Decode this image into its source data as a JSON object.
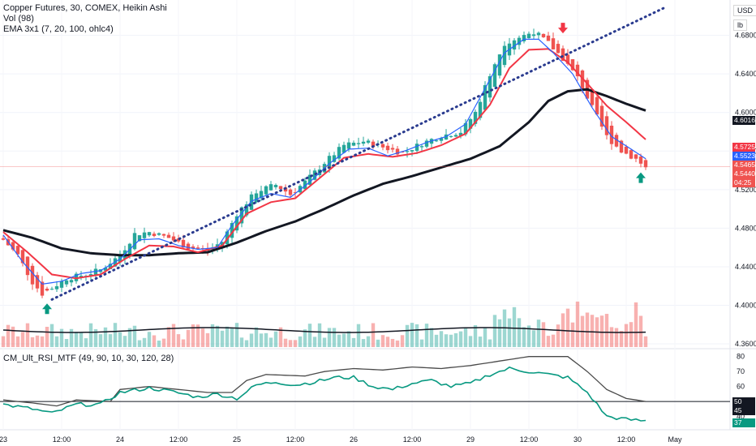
{
  "header": {
    "title": "Copper Futures, 30, COMEX, Heikin Ashi",
    "vol_label": "Vol (98)",
    "ema_label": "EMA 3x1 (7, 20, 100, ohlc4)",
    "rsi_label": "CM_Ult_RSI_MTF (49, 90, 10, 30, 120, 28)",
    "currency": "USD",
    "unit": "lb"
  },
  "colors": {
    "up": "#26a69a",
    "down": "#ef5350",
    "ema_fast": "#2962ff",
    "ema_mid": "#f23645",
    "ema_slow": "#131722",
    "trend": "#2a3b8f",
    "rsi": "#089981",
    "rsi_htf": "#4a4a4a"
  },
  "price_tags": {
    "ema_slow": "4.6016",
    "ema_mid": "4.5725",
    "ema_fast": "4.5523",
    "high": "4.5465",
    "last": "4.5440",
    "countdown": "04:25"
  },
  "rsi_tags": {
    "htf": "50",
    "mid": "45",
    "rsi": "37"
  },
  "chart_data": {
    "type": "candlestick",
    "title": "Copper Futures, 30, COMEX, Heikin Ashi",
    "x_ticks": [
      "23",
      "12:00",
      "24",
      "12:00",
      "25",
      "12:00",
      "26",
      "12:00",
      "29",
      "12:00",
      "30",
      "12:00",
      "May"
    ],
    "y_ticks": [
      "4.6800",
      "4.6400",
      "4.6000",
      "4.5600",
      "4.5200",
      "4.4800",
      "4.4400",
      "4.4000",
      "4.3600"
    ],
    "ylim": [
      4.355,
      4.715
    ],
    "price_keypoints": [
      [
        0,
        4.468
      ],
      [
        3,
        4.452
      ],
      [
        6,
        4.424
      ],
      [
        8,
        4.412
      ],
      [
        10,
        4.418
      ],
      [
        13,
        4.428
      ],
      [
        17,
        4.432
      ],
      [
        20,
        4.437
      ],
      [
        24,
        4.452
      ],
      [
        27,
        4.474
      ],
      [
        30,
        4.476
      ],
      [
        34,
        4.47
      ],
      [
        38,
        4.46
      ],
      [
        42,
        4.457
      ],
      [
        45,
        4.466
      ],
      [
        48,
        4.495
      ],
      [
        52,
        4.518
      ],
      [
        56,
        4.525
      ],
      [
        59,
        4.515
      ],
      [
        62,
        4.528
      ],
      [
        66,
        4.548
      ],
      [
        70,
        4.566
      ],
      [
        74,
        4.57
      ],
      [
        78,
        4.564
      ],
      [
        82,
        4.558
      ],
      [
        86,
        4.568
      ],
      [
        90,
        4.576
      ],
      [
        94,
        4.58
      ],
      [
        97,
        4.6
      ],
      [
        100,
        4.64
      ],
      [
        103,
        4.672
      ],
      [
        106,
        4.678
      ],
      [
        109,
        4.684
      ],
      [
        112,
        4.672
      ],
      [
        115,
        4.656
      ],
      [
        118,
        4.636
      ],
      [
        121,
        4.605
      ],
      [
        124,
        4.575
      ],
      [
        127,
        4.56
      ],
      [
        130,
        4.552
      ],
      [
        132,
        4.543
      ]
    ],
    "ema_fast_keypoints": [
      [
        0,
        4.473
      ],
      [
        4,
        4.445
      ],
      [
        8,
        4.422
      ],
      [
        12,
        4.425
      ],
      [
        16,
        4.433
      ],
      [
        20,
        4.436
      ],
      [
        24,
        4.448
      ],
      [
        28,
        4.468
      ],
      [
        32,
        4.469
      ],
      [
        36,
        4.462
      ],
      [
        40,
        4.458
      ],
      [
        44,
        4.46
      ],
      [
        47,
        4.483
      ],
      [
        51,
        4.508
      ],
      [
        55,
        4.516
      ],
      [
        59,
        4.512
      ],
      [
        63,
        4.528
      ],
      [
        67,
        4.547
      ],
      [
        71,
        4.562
      ],
      [
        75,
        4.563
      ],
      [
        79,
        4.555
      ],
      [
        83,
        4.561
      ],
      [
        87,
        4.569
      ],
      [
        91,
        4.575
      ],
      [
        95,
        4.588
      ],
      [
        99,
        4.625
      ],
      [
        103,
        4.662
      ],
      [
        107,
        4.676
      ],
      [
        110,
        4.676
      ],
      [
        113,
        4.662
      ],
      [
        117,
        4.64
      ],
      [
        121,
        4.605
      ],
      [
        125,
        4.575
      ],
      [
        129,
        4.562
      ],
      [
        132,
        4.552
      ]
    ],
    "ema_mid_keypoints": [
      [
        0,
        4.476
      ],
      [
        5,
        4.455
      ],
      [
        10,
        4.432
      ],
      [
        15,
        4.428
      ],
      [
        20,
        4.432
      ],
      [
        25,
        4.448
      ],
      [
        30,
        4.462
      ],
      [
        35,
        4.461
      ],
      [
        40,
        4.455
      ],
      [
        45,
        4.462
      ],
      [
        50,
        4.495
      ],
      [
        55,
        4.507
      ],
      [
        60,
        4.511
      ],
      [
        65,
        4.532
      ],
      [
        70,
        4.553
      ],
      [
        75,
        4.557
      ],
      [
        80,
        4.554
      ],
      [
        85,
        4.558
      ],
      [
        90,
        4.566
      ],
      [
        95,
        4.578
      ],
      [
        100,
        4.608
      ],
      [
        104,
        4.646
      ],
      [
        108,
        4.665
      ],
      [
        112,
        4.666
      ],
      [
        116,
        4.652
      ],
      [
        120,
        4.63
      ],
      [
        124,
        4.607
      ],
      [
        128,
        4.59
      ],
      [
        132,
        4.572
      ]
    ],
    "ema_slow_keypoints": [
      [
        0,
        4.478
      ],
      [
        6,
        4.47
      ],
      [
        12,
        4.459
      ],
      [
        18,
        4.454
      ],
      [
        24,
        4.452
      ],
      [
        30,
        4.452
      ],
      [
        36,
        4.454
      ],
      [
        42,
        4.455
      ],
      [
        48,
        4.465
      ],
      [
        54,
        4.477
      ],
      [
        60,
        4.487
      ],
      [
        66,
        4.5
      ],
      [
        72,
        4.514
      ],
      [
        78,
        4.526
      ],
      [
        84,
        4.534
      ],
      [
        90,
        4.543
      ],
      [
        96,
        4.552
      ],
      [
        102,
        4.565
      ],
      [
        108,
        4.59
      ],
      [
        112,
        4.612
      ],
      [
        116,
        4.622
      ],
      [
        120,
        4.624
      ],
      [
        124,
        4.617
      ],
      [
        128,
        4.609
      ],
      [
        132,
        4.602
      ]
    ],
    "trendline": {
      "from": [
        10,
        4.406
      ],
      "to": [
        136,
        4.709
      ]
    },
    "signals": [
      {
        "type": "buy",
        "index": 9,
        "price": 4.396
      },
      {
        "type": "sell",
        "index": 115,
        "price": 4.688
      },
      {
        "type": "buy",
        "index": 131,
        "price": 4.532
      }
    ],
    "rsi_keypoints": [
      [
        0,
        48
      ],
      [
        6,
        45
      ],
      [
        10,
        42
      ],
      [
        15,
        48
      ],
      [
        20,
        48
      ],
      [
        24,
        56
      ],
      [
        30,
        59
      ],
      [
        34,
        57
      ],
      [
        40,
        53
      ],
      [
        44,
        55
      ],
      [
        48,
        52
      ],
      [
        52,
        61
      ],
      [
        56,
        63
      ],
      [
        60,
        61
      ],
      [
        64,
        63
      ],
      [
        68,
        66
      ],
      [
        72,
        66
      ],
      [
        76,
        60
      ],
      [
        80,
        58
      ],
      [
        84,
        62
      ],
      [
        88,
        64
      ],
      [
        92,
        60
      ],
      [
        96,
        62
      ],
      [
        100,
        68
      ],
      [
        104,
        72
      ],
      [
        108,
        70
      ],
      [
        112,
        68
      ],
      [
        116,
        66
      ],
      [
        120,
        56
      ],
      [
        124,
        40
      ],
      [
        128,
        38
      ],
      [
        132,
        37
      ]
    ],
    "rsi_htf_keypoints": [
      [
        0,
        51
      ],
      [
        6,
        49
      ],
      [
        11,
        47
      ],
      [
        15,
        51
      ],
      [
        22,
        50
      ],
      [
        24,
        58
      ],
      [
        30,
        60
      ],
      [
        36,
        58
      ],
      [
        42,
        56
      ],
      [
        47,
        56
      ],
      [
        50,
        64
      ],
      [
        54,
        68
      ],
      [
        62,
        67
      ],
      [
        66,
        70
      ],
      [
        72,
        72
      ],
      [
        78,
        71
      ],
      [
        84,
        73
      ],
      [
        90,
        72
      ],
      [
        96,
        74
      ],
      [
        102,
        77
      ],
      [
        108,
        80
      ],
      [
        116,
        80
      ],
      [
        120,
        70
      ],
      [
        124,
        58
      ],
      [
        128,
        52
      ],
      [
        132,
        50
      ]
    ],
    "rsi_ylim": [
      30,
      82
    ],
    "rsi_ticks": [
      "80",
      "70",
      "60",
      "50",
      "40"
    ],
    "rsi_midline": 50
  }
}
